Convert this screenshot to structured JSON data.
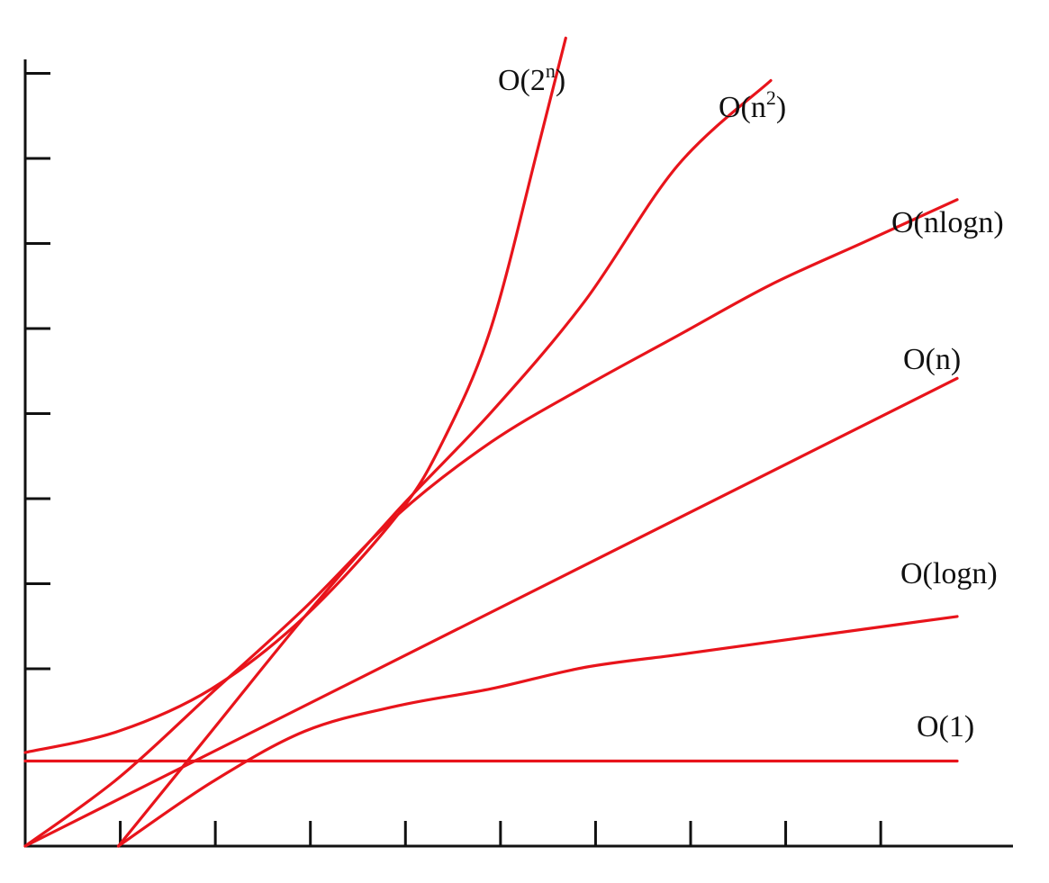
{
  "chart_data": {
    "type": "line",
    "title": "",
    "xlabel": "",
    "ylabel": "",
    "x_ticks": 9,
    "y_ticks": 8,
    "grid": false,
    "line_color": "#e8141b",
    "axis_color": "#111111",
    "series": [
      {
        "name": "O(1)",
        "base": "O(",
        "sup": "",
        "close": ")",
        "inner": "1",
        "values": [
          [
            0,
            1.0
          ],
          [
            10.0,
            1.0
          ]
        ]
      },
      {
        "name": "O(logn)",
        "base": "O(",
        "sup": "",
        "close": ")",
        "inner": "logn",
        "values": [
          [
            1.0,
            0
          ],
          [
            2.0,
            0.75
          ],
          [
            3.0,
            1.35
          ],
          [
            4.0,
            1.65
          ],
          [
            5.0,
            1.85
          ],
          [
            6.0,
            2.1
          ],
          [
            7.0,
            2.25
          ],
          [
            8.0,
            2.4
          ],
          [
            9.0,
            2.55
          ],
          [
            10.0,
            2.7
          ]
        ]
      },
      {
        "name": "O(n)",
        "base": "O(",
        "sup": "",
        "close": ")",
        "inner": "n",
        "values": [
          [
            0,
            0
          ],
          [
            10.0,
            5.5
          ]
        ]
      },
      {
        "name": "O(nlogn)",
        "base": "O(",
        "sup": "",
        "close": ")",
        "inner": "nlogn",
        "values": [
          [
            0,
            0
          ],
          [
            1.0,
            0.8
          ],
          [
            2.0,
            1.8
          ],
          [
            3.0,
            2.8
          ],
          [
            4.0,
            3.9
          ],
          [
            5.0,
            4.75
          ],
          [
            6.0,
            5.4
          ],
          [
            7.0,
            6.0
          ],
          [
            8.0,
            6.6
          ],
          [
            9.0,
            7.1
          ],
          [
            10.0,
            7.6
          ]
        ]
      },
      {
        "name": "O(n²)",
        "base": "O(n",
        "sup": "2",
        "close": ")",
        "inner": "",
        "values": [
          [
            1.0,
            0
          ],
          [
            2.0,
            1.35
          ],
          [
            3.0,
            2.7
          ],
          [
            4.0,
            3.95
          ],
          [
            5.0,
            5.1
          ],
          [
            6.0,
            6.4
          ],
          [
            7.0,
            8.0
          ],
          [
            8.0,
            9.0
          ]
        ]
      },
      {
        "name": "O(2ⁿ)",
        "base": "O(2",
        "sup": "n",
        "close": ")",
        "inner": "",
        "values": [
          [
            0,
            1.1
          ],
          [
            1.0,
            1.35
          ],
          [
            2.0,
            1.85
          ],
          [
            3.0,
            2.7
          ],
          [
            4.0,
            3.9
          ],
          [
            4.5,
            4.8
          ],
          [
            5.0,
            6.1
          ],
          [
            5.5,
            8.2
          ],
          [
            5.8,
            9.5
          ]
        ]
      }
    ]
  }
}
